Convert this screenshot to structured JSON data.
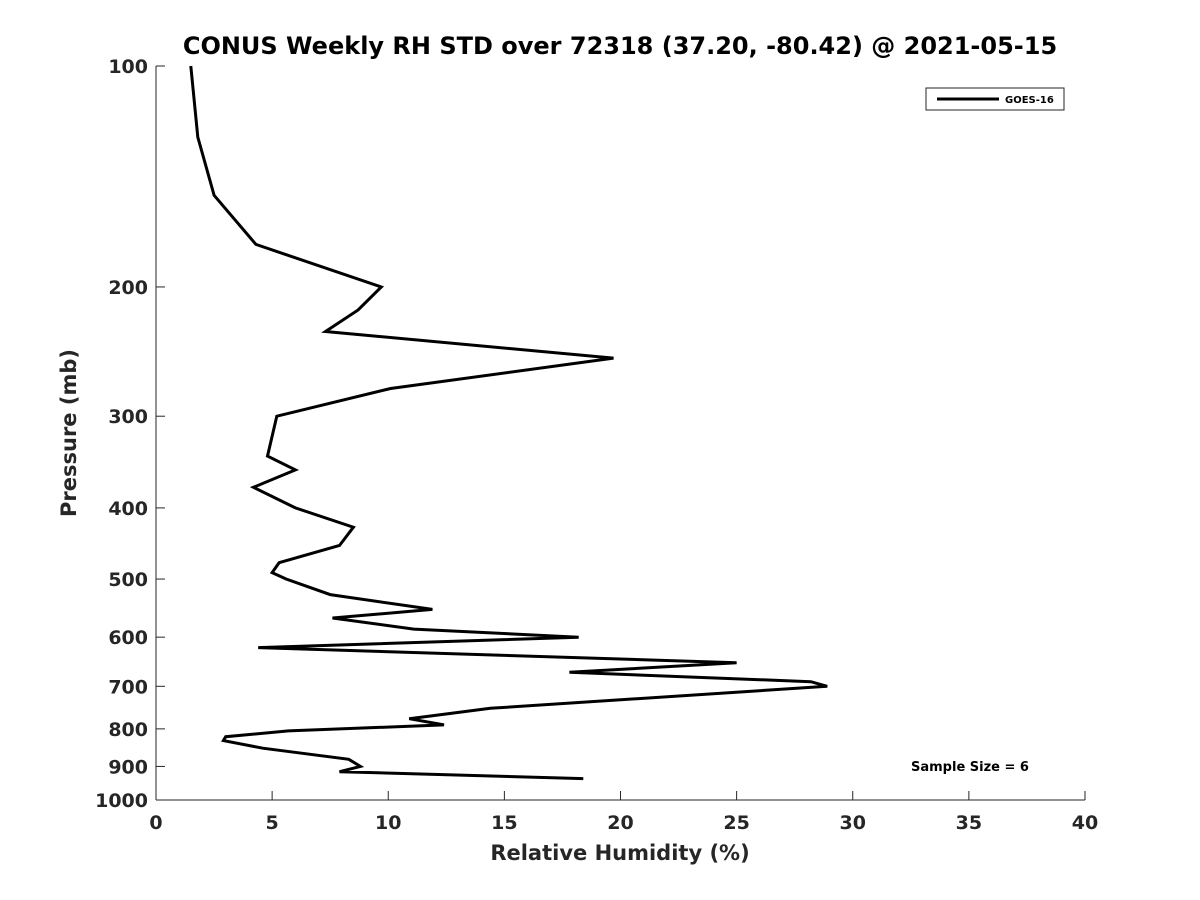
{
  "chart_data": {
    "type": "line",
    "title": "CONUS Weekly RH STD over 72318 (37.20, -80.42) @ 2021-05-15",
    "xlabel": "Relative Humidity (%)",
    "ylabel": "Pressure (mb)",
    "xlim": [
      0,
      40
    ],
    "ylim": [
      100,
      1000
    ],
    "y_scale": "log",
    "y_direction": "reversed",
    "x_ticks": [
      "0",
      "5",
      "10",
      "15",
      "20",
      "25",
      "30",
      "35",
      "40"
    ],
    "y_ticks": [
      "100",
      "200",
      "300",
      "400",
      "500",
      "600",
      "700",
      "800",
      "900",
      "1000"
    ],
    "grid": false,
    "legend_position": "top-right",
    "annotation": "Sample Size = 6",
    "series": [
      {
        "name": "GOES-16",
        "color": "#000000",
        "points": [
          {
            "x": 1.5,
            "y": 100
          },
          {
            "x": 1.8,
            "y": 125
          },
          {
            "x": 2.5,
            "y": 150
          },
          {
            "x": 4.3,
            "y": 175
          },
          {
            "x": 9.7,
            "y": 200
          },
          {
            "x": 8.7,
            "y": 215
          },
          {
            "x": 7.3,
            "y": 230
          },
          {
            "x": 19.7,
            "y": 250
          },
          {
            "x": 10.1,
            "y": 275
          },
          {
            "x": 5.2,
            "y": 300
          },
          {
            "x": 4.8,
            "y": 340
          },
          {
            "x": 6.0,
            "y": 355
          },
          {
            "x": 4.2,
            "y": 375
          },
          {
            "x": 6.0,
            "y": 400
          },
          {
            "x": 8.5,
            "y": 425
          },
          {
            "x": 7.9,
            "y": 450
          },
          {
            "x": 5.3,
            "y": 475
          },
          {
            "x": 5.0,
            "y": 490
          },
          {
            "x": 5.6,
            "y": 500
          },
          {
            "x": 7.5,
            "y": 525
          },
          {
            "x": 11.9,
            "y": 550
          },
          {
            "x": 7.6,
            "y": 565
          },
          {
            "x": 11.1,
            "y": 585
          },
          {
            "x": 18.2,
            "y": 600
          },
          {
            "x": 4.4,
            "y": 620
          },
          {
            "x": 25.0,
            "y": 650
          },
          {
            "x": 17.8,
            "y": 670
          },
          {
            "x": 28.2,
            "y": 690
          },
          {
            "x": 28.9,
            "y": 700
          },
          {
            "x": 14.4,
            "y": 750
          },
          {
            "x": 10.9,
            "y": 775
          },
          {
            "x": 12.4,
            "y": 790
          },
          {
            "x": 5.7,
            "y": 805
          },
          {
            "x": 3.0,
            "y": 820
          },
          {
            "x": 2.9,
            "y": 830
          },
          {
            "x": 4.6,
            "y": 850
          },
          {
            "x": 8.3,
            "y": 880
          },
          {
            "x": 8.8,
            "y": 900
          },
          {
            "x": 7.9,
            "y": 915
          },
          {
            "x": 18.4,
            "y": 935
          }
        ]
      }
    ]
  }
}
